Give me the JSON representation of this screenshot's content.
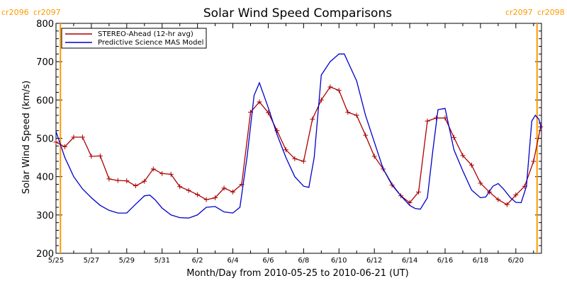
{
  "chart_data": {
    "type": "line",
    "title": "Solar Wind Speed Comparisons",
    "xlabel": "Month/Day from 2010-05-25 to 2010-06-21 (UT)",
    "ylabel": "Solar Wind Speed (km/s)",
    "xlim": [
      0,
      27.45
    ],
    "ylim": [
      200,
      800
    ],
    "x_ticks": [
      {
        "x": 0,
        "label": "5/25"
      },
      {
        "x": 2,
        "label": "5/27"
      },
      {
        "x": 4,
        "label": "5/29"
      },
      {
        "x": 6,
        "label": "5/31"
      },
      {
        "x": 8,
        "label": "6/2"
      },
      {
        "x": 10,
        "label": "6/4"
      },
      {
        "x": 12,
        "label": "6/6"
      },
      {
        "x": 14,
        "label": "6/8"
      },
      {
        "x": 16,
        "label": "6/10"
      },
      {
        "x": 18,
        "label": "6/12"
      },
      {
        "x": 20,
        "label": "6/14"
      },
      {
        "x": 22,
        "label": "6/16"
      },
      {
        "x": 24,
        "label": "6/18"
      },
      {
        "x": 26,
        "label": "6/20"
      }
    ],
    "y_ticks": [
      200,
      300,
      400,
      500,
      600,
      700,
      800
    ],
    "legend_position": "top-left",
    "carrington_markers": [
      {
        "x": 0.25,
        "left_label": "cr2096",
        "right_label": "cr2097"
      },
      {
        "x": 27.2,
        "left_label": "cr2097",
        "right_label": "cr2098"
      }
    ],
    "series": [
      {
        "name": "STEREO-Ahead (12-hr avg)",
        "color": "#aa0000",
        "marker": "plus",
        "x": [
          0,
          0.5,
          1,
          1.5,
          2,
          2.5,
          3,
          3.5,
          4,
          4.5,
          5,
          5.5,
          6,
          6.5,
          7,
          7.5,
          8,
          8.5,
          9,
          9.5,
          10,
          10.5,
          11,
          11.5,
          12,
          12.5,
          13,
          13.5,
          14,
          14.5,
          15,
          15.5,
          16,
          16.5,
          17,
          17.5,
          18,
          18.5,
          19,
          19.5,
          20,
          20.5,
          21,
          21.5,
          22,
          22.5,
          23,
          23.5,
          24,
          24.5,
          25,
          25.5,
          26,
          26.5,
          27,
          27.4
        ],
        "values": [
          490,
          478,
          503,
          503,
          453,
          454,
          394,
          390,
          389,
          376,
          388,
          420,
          408,
          406,
          374,
          364,
          353,
          340,
          345,
          370,
          360,
          380,
          568,
          595,
          567,
          520,
          470,
          447,
          440,
          550,
          600,
          634,
          625,
          568,
          560,
          508,
          453,
          420,
          378,
          350,
          332,
          360,
          545,
          553,
          553,
          502,
          455,
          430,
          383,
          360,
          340,
          327,
          352,
          375,
          440,
          530
        ]
      },
      {
        "name": "Predictive Science MAS Model",
        "color": "#0000cc",
        "marker": "none",
        "x": [
          0,
          0.5,
          1,
          1.5,
          2,
          2.5,
          3,
          3.5,
          4,
          4.5,
          5,
          5.3,
          5.6,
          6,
          6.5,
          7,
          7.5,
          8,
          8.5,
          9,
          9.5,
          10,
          10.4,
          10.8,
          11.2,
          11.5,
          12,
          12.5,
          13,
          13.5,
          14,
          14.3,
          14.6,
          15,
          15.5,
          16,
          16.3,
          16.6,
          17,
          17.5,
          18,
          18.5,
          19,
          19.5,
          20,
          20.3,
          20.6,
          21,
          21.3,
          21.6,
          22,
          22.5,
          23,
          23.5,
          24,
          24.3,
          24.7,
          25,
          25.3,
          25.7,
          26,
          26.3,
          26.6,
          26.9,
          27.1,
          27.3,
          27.45
        ],
        "values": [
          518,
          450,
          400,
          368,
          345,
          325,
          312,
          305,
          305,
          328,
          350,
          352,
          340,
          318,
          300,
          293,
          292,
          300,
          320,
          322,
          308,
          305,
          320,
          450,
          612,
          645,
          580,
          510,
          450,
          400,
          375,
          372,
          450,
          665,
          700,
          720,
          720,
          690,
          650,
          560,
          490,
          420,
          380,
          350,
          325,
          317,
          315,
          345,
          465,
          575,
          578,
          470,
          415,
          365,
          345,
          347,
          375,
          382,
          368,
          345,
          333,
          332,
          375,
          545,
          560,
          550,
          525
        ]
      }
    ]
  }
}
